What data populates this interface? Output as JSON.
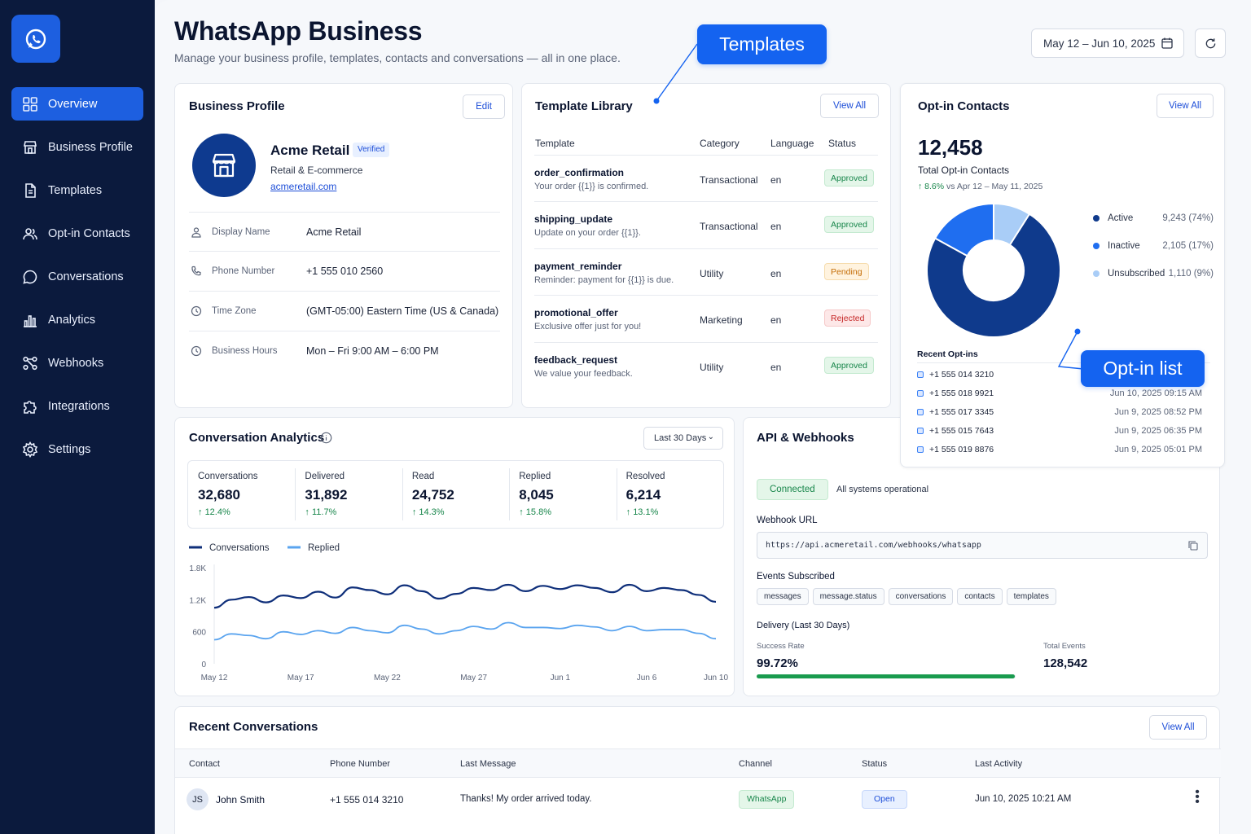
{
  "sidebar": {
    "logo_icon": "whatsapp-icon",
    "items": [
      {
        "label": "Overview",
        "icon": "grid-icon",
        "active": true
      },
      {
        "label": "Business Profile",
        "icon": "store-icon"
      },
      {
        "label": "Templates",
        "icon": "document-icon"
      },
      {
        "label": "Opt-in Contacts",
        "icon": "users-icon"
      },
      {
        "label": "Conversations",
        "icon": "chat-bubble-icon"
      },
      {
        "label": "Analytics",
        "icon": "bar-chart-icon"
      },
      {
        "label": "Webhooks",
        "icon": "webhook-icon"
      },
      {
        "label": "Integrations",
        "icon": "puzzle-icon"
      },
      {
        "label": "Settings",
        "icon": "gear-icon"
      }
    ]
  },
  "header": {
    "title": "WhatsApp Business",
    "subtitle": "Manage your business profile, templates, contacts and conversations — all in one place.",
    "date_range": "May 12 – Jun 10, 2025"
  },
  "callouts": {
    "templates": "Templates",
    "optin": "Opt-in list"
  },
  "business_profile": {
    "title": "Business Profile",
    "edit_label": "Edit",
    "name": "Acme Retail",
    "verified": "Verified",
    "category": "Retail & E-commerce",
    "website": "acmeretail.com",
    "fields": [
      {
        "label": "Display Name",
        "value": "Acme Retail",
        "icon": "user-icon"
      },
      {
        "label": "Phone Number",
        "value": "+1 555 010 2560",
        "icon": "phone-icon"
      },
      {
        "label": "Time Zone",
        "value": "(GMT-05:00) Eastern Time (US & Canada)",
        "icon": "clock-icon"
      },
      {
        "label": "Business Hours",
        "value": "Mon – Fri 9:00 AM – 6:00 PM",
        "icon": "clock-icon"
      }
    ]
  },
  "template_library": {
    "title": "Template Library",
    "view_all": "View All",
    "columns": [
      "Template",
      "Category",
      "Language",
      "Status"
    ],
    "rows": [
      {
        "name": "order_confirmation",
        "desc": "Your order {{1}} is confirmed.",
        "category": "Transactional",
        "language": "en",
        "status": "Approved"
      },
      {
        "name": "shipping_update",
        "desc": "Update on your order {{1}}.",
        "category": "Transactional",
        "language": "en",
        "status": "Approved"
      },
      {
        "name": "payment_reminder",
        "desc": "Reminder: payment for {{1}} is due.",
        "category": "Utility",
        "language": "en",
        "status": "Pending"
      },
      {
        "name": "promotional_offer",
        "desc": "Exclusive offer just for you!",
        "category": "Marketing",
        "language": "en",
        "status": "Rejected"
      },
      {
        "name": "feedback_request",
        "desc": "We value your feedback.",
        "category": "Utility",
        "language": "en",
        "status": "Approved"
      }
    ]
  },
  "optin": {
    "title": "Opt-in Contacts",
    "view_all": "View All",
    "total": "12,458",
    "total_label": "Total Opt-in Contacts",
    "change": "8.6%",
    "change_period": "vs Apr 12 – May 11, 2025",
    "colors": {
      "Active": "#0f3a8c",
      "Inactive": "#1f6ef0",
      "Unsubscribed": "#a9cdf7"
    },
    "breakdown": [
      {
        "label": "Active",
        "value": "9,243 (74%)",
        "pct": 74
      },
      {
        "label": "Inactive",
        "value": "2,105 (17%)",
        "pct": 17
      },
      {
        "label": "Unsubscribed",
        "value": "1,110 (9%)",
        "pct": 9
      }
    ],
    "recent_title": "Recent Opt-ins",
    "recent": [
      {
        "phone": "+1 555 014 3210",
        "time": ""
      },
      {
        "phone": "+1 555 018 9921",
        "time": "Jun 10, 2025 09:15 AM"
      },
      {
        "phone": "+1 555 017 3345",
        "time": "Jun 9, 2025 08:52 PM"
      },
      {
        "phone": "+1 555 015 7643",
        "time": "Jun 9, 2025 06:35 PM"
      },
      {
        "phone": "+1 555 019 8876",
        "time": "Jun 9, 2025 05:01 PM"
      }
    ]
  },
  "analytics": {
    "title": "Conversation Analytics",
    "period": "Last 30 Days",
    "metrics": [
      {
        "label": "Conversations",
        "value": "32,680",
        "change": "12.4%"
      },
      {
        "label": "Delivered",
        "value": "31,892",
        "change": "11.7%"
      },
      {
        "label": "Read",
        "value": "24,752",
        "change": "14.3%"
      },
      {
        "label": "Replied",
        "value": "8,045",
        "change": "15.8%"
      },
      {
        "label": "Resolved",
        "value": "6,214",
        "change": "13.1%"
      }
    ]
  },
  "chart_data": {
    "type": "line",
    "x": [
      "May 12",
      "May 13",
      "May 14",
      "May 15",
      "May 16",
      "May 17",
      "May 18",
      "May 19",
      "May 20",
      "May 21",
      "May 22",
      "May 23",
      "May 24",
      "May 25",
      "May 26",
      "May 27",
      "May 28",
      "May 29",
      "May 30",
      "May 31",
      "Jun 1",
      "Jun 2",
      "Jun 3",
      "Jun 4",
      "Jun 5",
      "Jun 6",
      "Jun 7",
      "Jun 8",
      "Jun 9",
      "Jun 10"
    ],
    "xticks": [
      "May 12",
      "May 17",
      "May 22",
      "May 27",
      "Jun 1",
      "Jun 6",
      "Jun 10"
    ],
    "yticks": [
      "0",
      "600",
      "1.2K",
      "1.8K"
    ],
    "ylim": [
      0,
      1800
    ],
    "series": [
      {
        "name": "Conversations",
        "color": "#0f2f7a",
        "values": [
          1050,
          1200,
          1250,
          1150,
          1280,
          1230,
          1350,
          1240,
          1430,
          1380,
          1300,
          1470,
          1360,
          1220,
          1310,
          1420,
          1380,
          1480,
          1360,
          1460,
          1400,
          1470,
          1420,
          1340,
          1480,
          1360,
          1420,
          1380,
          1290,
          1160
        ]
      },
      {
        "name": "Replied",
        "color": "#5aa4ef",
        "values": [
          450,
          560,
          530,
          470,
          600,
          550,
          620,
          570,
          680,
          620,
          580,
          720,
          650,
          560,
          620,
          700,
          650,
          770,
          680,
          680,
          660,
          720,
          690,
          620,
          700,
          620,
          640,
          640,
          570,
          470
        ]
      }
    ]
  },
  "api": {
    "title": "API & Webhooks",
    "status": "Connected",
    "status_text": "All systems operational",
    "webhook_label": "Webhook URL",
    "webhook_url": "https://api.acmeretail.com/webhooks/whatsapp",
    "events_label": "Events Subscribed",
    "events": [
      "messages",
      "message.status",
      "conversations",
      "contacts",
      "templates"
    ],
    "delivery_label": "Delivery (Last 30 Days)",
    "success_label": "Success Rate",
    "success_rate": "99.72%",
    "success_fraction": 0.9972,
    "total_events_label": "Total Events",
    "total_events": "128,542"
  },
  "recent_conversations": {
    "title": "Recent Conversations",
    "view_all": "View All",
    "columns": [
      "Contact",
      "Phone Number",
      "Last Message",
      "Channel",
      "Status",
      "Last Activity"
    ],
    "rows": [
      {
        "initials": "JS",
        "name": "John Smith",
        "phone": "+1 555 014 3210",
        "message": "Thanks! My order arrived today.",
        "channel": "WhatsApp",
        "status": "Open",
        "activity": "Jun 10, 2025 10:21 AM"
      }
    ]
  }
}
